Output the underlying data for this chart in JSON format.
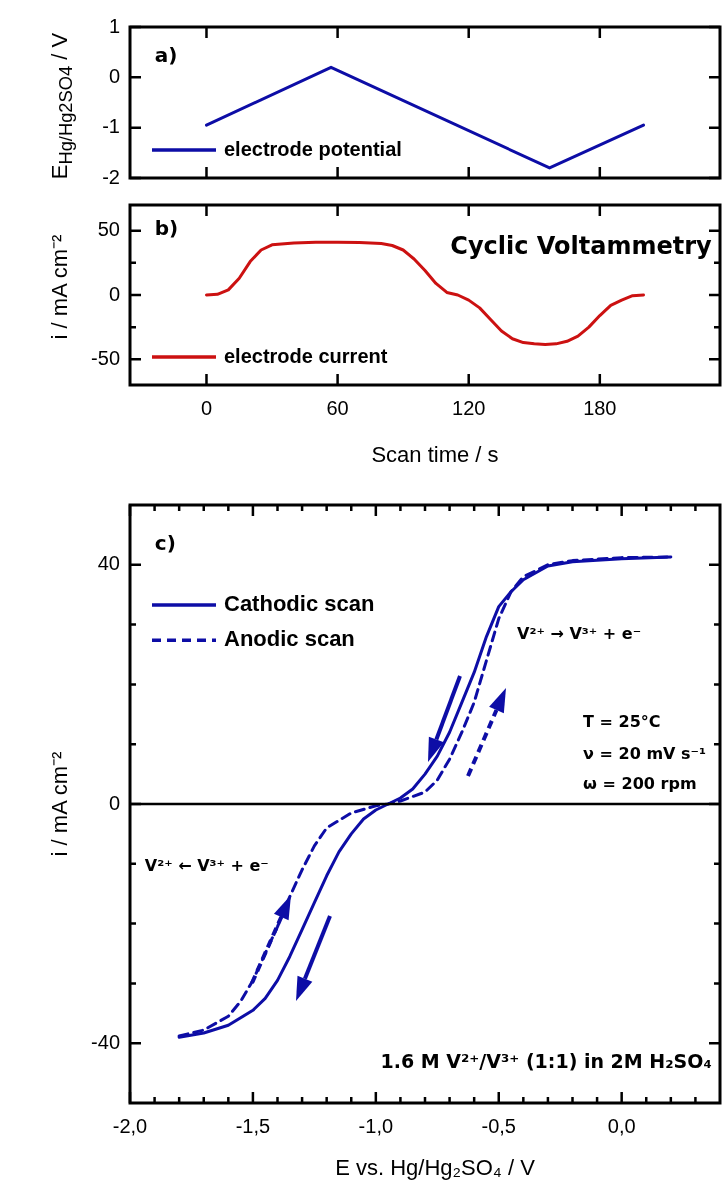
{
  "chart_data": [
    {
      "type": "line",
      "ylabel": "E$_{Hg/Hg2SO4}$ / V",
      "x": [
        0,
        57,
        157,
        200
      ],
      "series": [
        {
          "name": "electrode potential",
          "color": "#0d0da6",
          "values": [
            -0.95,
            0.2,
            -1.8,
            -0.95
          ]
        }
      ],
      "xlim": [
        -35,
        235
      ],
      "xticks": [
        0,
        60,
        120,
        180
      ],
      "ylim": [
        -2,
        1
      ],
      "yticks": [
        -2,
        -1,
        0,
        1
      ],
      "tick_labels": "y",
      "legend": "bottom left",
      "marker": "none",
      "annotations": [
        "a)"
      ]
    },
    {
      "type": "line",
      "xlabel": "Scan time / s",
      "ylabel": "i / mA cm⁻²",
      "x": [
        0,
        5,
        10,
        15,
        20,
        25,
        30,
        40,
        50,
        60,
        70,
        80,
        85,
        90,
        95,
        100,
        105,
        110,
        115,
        120,
        125,
        130,
        135,
        140,
        145,
        150,
        155,
        160,
        165,
        170,
        175,
        180,
        185,
        190,
        195,
        200
      ],
      "series": [
        {
          "name": "electrode current",
          "color": "#cc1111",
          "values": [
            0,
            0.5,
            4,
            13,
            26,
            35,
            39,
            40.5,
            41,
            41,
            40.8,
            40,
            38.5,
            35,
            28,
            19,
            9,
            2,
            0,
            -4,
            -10,
            -19,
            -28,
            -34,
            -37,
            -38,
            -38.5,
            -38,
            -36,
            -32,
            -25,
            -16,
            -8,
            -4,
            -0.5,
            0
          ]
        }
      ],
      "xlim": [
        -35,
        235
      ],
      "xticks": [
        0,
        60,
        120,
        180
      ],
      "ylim": [
        -70,
        70
      ],
      "yticks": [
        -50,
        {
          "value": -25,
          "label": null
        },
        0,
        {
          "value": 25,
          "label": null
        },
        50
      ],
      "legend": "bottom left",
      "marker": "none",
      "annotations": [
        "b)",
        "Cyclic Voltammetry"
      ]
    },
    {
      "type": "line",
      "xlabel": "E vs. Hg/Hg₂SO₄ / V",
      "ylabel": "i / mA cm⁻²",
      "series": [
        {
          "name": "Cathodic scan",
          "color": "#0d0da6",
          "x": [
            0.2,
            0,
            -0.2,
            -0.3,
            -0.4,
            -0.45,
            -0.5,
            -0.55,
            -0.6,
            -0.65,
            -0.7,
            -0.75,
            -0.8,
            -0.85,
            -0.9,
            -0.95,
            -1.0,
            -1.05,
            -1.1,
            -1.15,
            -1.2,
            -1.25,
            -1.3,
            -1.35,
            -1.4,
            -1.45,
            -1.5,
            -1.6,
            -1.7,
            -1.8
          ],
          "values": [
            41.3,
            41,
            40.5,
            39.8,
            37.5,
            35.5,
            33,
            28,
            22,
            17,
            12,
            8,
            5,
            2.5,
            1,
            0,
            -1,
            -2.5,
            -5,
            -8,
            -12,
            -16.5,
            -21,
            -25.5,
            -29.5,
            -32.5,
            -34.5,
            -37,
            -38.3,
            -39
          ]
        },
        {
          "name": "Anodic scan",
          "color": "#0d0da6",
          "line_style": "dashed",
          "x": [
            -1.8,
            -1.7,
            -1.6,
            -1.55,
            -1.5,
            -1.45,
            -1.4,
            -1.35,
            -1.3,
            -1.25,
            -1.2,
            -1.1,
            -1.0,
            -0.95,
            -0.9,
            -0.8,
            -0.75,
            -0.7,
            -0.65,
            -0.6,
            -0.55,
            -0.5,
            -0.45,
            -0.4,
            -0.3,
            -0.2,
            0,
            0.2
          ],
          "values": [
            -38.8,
            -37.8,
            -35.5,
            -33,
            -29.5,
            -25,
            -20.5,
            -15.5,
            -11,
            -7,
            -4,
            -1.5,
            -0.3,
            0,
            0.5,
            2,
            4,
            7.5,
            12,
            17,
            24,
            31,
            35.5,
            38,
            40,
            40.7,
            41.2,
            41.3
          ]
        }
      ],
      "xlim": [
        -2,
        0.4
      ],
      "xticks": [
        {
          "value": -2,
          "label": "-2,0"
        },
        {
          "value": -1.9,
          "label": null
        },
        {
          "value": -1.8,
          "label": null
        },
        {
          "value": -1.7,
          "label": null
        },
        {
          "value": -1.6,
          "label": null
        },
        {
          "value": -1.5,
          "label": "-1,5"
        },
        {
          "value": -1.4,
          "label": null
        },
        {
          "value": -1.3,
          "label": null
        },
        {
          "value": -1.2,
          "label": null
        },
        {
          "value": -1.1,
          "label": null
        },
        {
          "value": -1,
          "label": "-1,0"
        },
        {
          "value": -0.9,
          "label": null
        },
        {
          "value": -0.8,
          "label": null
        },
        {
          "value": -0.7,
          "label": null
        },
        {
          "value": -0.6,
          "label": null
        },
        {
          "value": -0.5,
          "label": "-0,5"
        },
        {
          "value": -0.4,
          "label": null
        },
        {
          "value": -0.3,
          "label": null
        },
        {
          "value": -0.2,
          "label": null
        },
        {
          "value": -0.1,
          "label": null
        },
        {
          "value": 0,
          "label": "0,0"
        },
        {
          "value": 0.1,
          "label": null
        },
        {
          "value": 0.2,
          "label": null
        },
        {
          "value": 0.3,
          "label": null
        }
      ],
      "ylim": [
        -50,
        50
      ],
      "yticks": [
        -40,
        {
          "value": -30,
          "label": null
        },
        {
          "value": -20,
          "label": null
        },
        {
          "value": -10,
          "label": null
        },
        0,
        {
          "value": 10,
          "label": null
        },
        {
          "value": 20,
          "label": null
        },
        {
          "value": 30,
          "label": null
        },
        40
      ],
      "ref_lines": [
        {
          "axis": "y",
          "value": 0,
          "color": "#000000"
        }
      ],
      "legend": "top left",
      "marker": "none",
      "annotations": [
        "c)",
        "V²⁺ → V³⁺ + e⁻",
        "T = 25°C",
        "ν = 20 mV s⁻¹",
        "ω = 200 rpm",
        "V²⁺ ← V³⁺ + e⁻",
        "1.6 M V²⁺/V³⁺ (1:1) in 2M H₂SO₄"
      ]
    }
  ]
}
